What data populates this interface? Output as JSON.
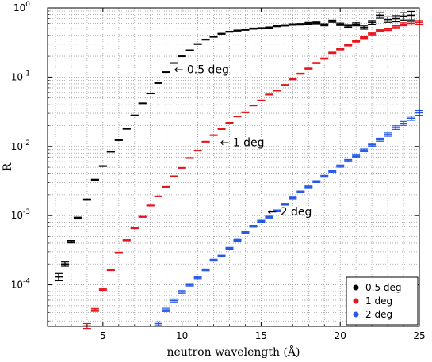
{
  "chart_data": {
    "type": "scatter",
    "xlabel": "neutron wavelength (Å)",
    "ylabel": "R",
    "xlim": [
      1.5,
      25
    ],
    "ylim_log10": [
      -4.6,
      0
    ],
    "yscale": "log",
    "grid": true,
    "legend_position": "bottom-right",
    "x_ticks": [
      5,
      10,
      15,
      20,
      25
    ],
    "y_ticks": [
      {
        "exp": "0",
        "value": 1
      },
      {
        "exp": "-1",
        "value": 0.1
      },
      {
        "exp": "-2",
        "value": 0.01
      },
      {
        "exp": "-3",
        "value": 0.001
      },
      {
        "exp": "-4",
        "value": 0.0001
      }
    ],
    "y_tick_base": "10",
    "series": [
      {
        "name": "0.5 deg",
        "color": "#000000",
        "points": [
          [
            2.2,
            0.00013,
            0.12
          ],
          [
            2.6,
            0.0002,
            0.07
          ],
          [
            3.0,
            0.00042,
            0.04
          ],
          [
            3.4,
            0.00092,
            0.03
          ],
          [
            4.0,
            0.0017,
            0.02
          ],
          [
            4.5,
            0.0033,
            0.015
          ],
          [
            5.0,
            0.0052,
            0.012
          ],
          [
            5.5,
            0.0084,
            0.01
          ],
          [
            6.0,
            0.0123,
            0.01
          ],
          [
            6.5,
            0.0179,
            0.01
          ],
          [
            7.0,
            0.028,
            0.01
          ],
          [
            7.5,
            0.042,
            0.01
          ],
          [
            8.0,
            0.058,
            0.01
          ],
          [
            8.5,
            0.082,
            0.01
          ],
          [
            9.0,
            0.118,
            0.01
          ],
          [
            9.5,
            0.16,
            0.01
          ],
          [
            10.0,
            0.2,
            0.01
          ],
          [
            10.5,
            0.244,
            0.012
          ],
          [
            11.0,
            0.3,
            0.012
          ],
          [
            11.5,
            0.347,
            0.013
          ],
          [
            12.0,
            0.382,
            0.014
          ],
          [
            12.5,
            0.422,
            0.015
          ],
          [
            13.0,
            0.452,
            0.015
          ],
          [
            13.5,
            0.47,
            0.016
          ],
          [
            14.0,
            0.483,
            0.017
          ],
          [
            14.5,
            0.502,
            0.018
          ],
          [
            15.0,
            0.508,
            0.019
          ],
          [
            15.5,
            0.52,
            0.02
          ],
          [
            16.0,
            0.547,
            0.021
          ],
          [
            16.5,
            0.56,
            0.022
          ],
          [
            17.0,
            0.575,
            0.023
          ],
          [
            17.5,
            0.58,
            0.025
          ],
          [
            18.0,
            0.6,
            0.027
          ],
          [
            18.5,
            0.608,
            0.03
          ],
          [
            19.0,
            0.57,
            0.033
          ],
          [
            19.5,
            0.643,
            0.037
          ],
          [
            20.0,
            0.58,
            0.04
          ],
          [
            20.5,
            0.55,
            0.045
          ],
          [
            21.0,
            0.58,
            0.05
          ],
          [
            21.5,
            0.52,
            0.055
          ],
          [
            22.0,
            0.62,
            0.06
          ],
          [
            22.5,
            0.78,
            0.09
          ],
          [
            23.0,
            0.68,
            0.09
          ],
          [
            23.5,
            0.7,
            0.1
          ],
          [
            24.0,
            0.76,
            0.12
          ],
          [
            24.5,
            0.78,
            0.14
          ]
        ]
      },
      {
        "name": "1 deg",
        "color": "#e8141b",
        "points": [
          [
            4.0,
            2.55e-05,
            0.08
          ],
          [
            4.5,
            4.35e-05,
            0.05
          ],
          [
            5.0,
            8.65e-05,
            0.035
          ],
          [
            5.5,
            0.000165,
            0.025
          ],
          [
            6.0,
            0.00029,
            0.02
          ],
          [
            6.5,
            0.00044,
            0.018
          ],
          [
            7.0,
            0.00066,
            0.016
          ],
          [
            7.5,
            0.00096,
            0.015
          ],
          [
            8.0,
            0.0014,
            0.014
          ],
          [
            8.5,
            0.0019,
            0.013
          ],
          [
            9.0,
            0.0026,
            0.012
          ],
          [
            9.5,
            0.0037,
            0.012
          ],
          [
            10.0,
            0.0049,
            0.012
          ],
          [
            10.5,
            0.0068,
            0.012
          ],
          [
            11.0,
            0.0087,
            0.012
          ],
          [
            11.5,
            0.0117,
            0.012
          ],
          [
            12.0,
            0.0145,
            0.012
          ],
          [
            12.5,
            0.0178,
            0.012
          ],
          [
            13.0,
            0.0219,
            0.013
          ],
          [
            13.5,
            0.027,
            0.013
          ],
          [
            14.0,
            0.031,
            0.013
          ],
          [
            14.5,
            0.039,
            0.013
          ],
          [
            15.0,
            0.046,
            0.014
          ],
          [
            15.5,
            0.056,
            0.014
          ],
          [
            16.0,
            0.064,
            0.015
          ],
          [
            16.5,
            0.077,
            0.015
          ],
          [
            17.0,
            0.093,
            0.016
          ],
          [
            17.5,
            0.112,
            0.017
          ],
          [
            18.0,
            0.133,
            0.018
          ],
          [
            18.5,
            0.16,
            0.019
          ],
          [
            19.0,
            0.185,
            0.02
          ],
          [
            19.5,
            0.224,
            0.022
          ],
          [
            20.0,
            0.253,
            0.024
          ],
          [
            20.5,
            0.29,
            0.026
          ],
          [
            21.0,
            0.33,
            0.028
          ],
          [
            21.5,
            0.37,
            0.03
          ],
          [
            22.0,
            0.42,
            0.033
          ],
          [
            22.5,
            0.47,
            0.036
          ],
          [
            23.0,
            0.49,
            0.04
          ],
          [
            23.5,
            0.53,
            0.045
          ],
          [
            24.0,
            0.58,
            0.05
          ],
          [
            24.5,
            0.6,
            0.055
          ],
          [
            25.0,
            0.62,
            0.06
          ]
        ]
      },
      {
        "name": "2 deg",
        "color": "#2659e6",
        "points": [
          [
            8.5,
            2.75e-05,
            0.06
          ],
          [
            9.0,
            4.35e-05,
            0.055
          ],
          [
            9.5,
            5.95e-05,
            0.05
          ],
          [
            10.0,
            7.9e-05,
            0.045
          ],
          [
            10.5,
            0.0001,
            0.04
          ],
          [
            11.0,
            0.000127,
            0.035
          ],
          [
            11.5,
            0.000165,
            0.03
          ],
          [
            12.0,
            0.000227,
            0.03
          ],
          [
            12.5,
            0.00026,
            0.03
          ],
          [
            13.0,
            0.000337,
            0.03
          ],
          [
            13.5,
            0.00044,
            0.03
          ],
          [
            14.0,
            0.00057,
            0.03
          ],
          [
            14.5,
            0.0007,
            0.03
          ],
          [
            15.0,
            0.00083,
            0.03
          ],
          [
            15.5,
            0.00095,
            0.03
          ],
          [
            16.0,
            0.00117,
            0.03
          ],
          [
            16.5,
            0.00146,
            0.03
          ],
          [
            17.0,
            0.0018,
            0.03
          ],
          [
            17.5,
            0.0022,
            0.03
          ],
          [
            18.0,
            0.0026,
            0.03
          ],
          [
            18.5,
            0.0031,
            0.03
          ],
          [
            19.0,
            0.0037,
            0.03
          ],
          [
            19.5,
            0.0043,
            0.035
          ],
          [
            20.0,
            0.0052,
            0.035
          ],
          [
            20.5,
            0.0062,
            0.04
          ],
          [
            21.0,
            0.0072,
            0.04
          ],
          [
            21.5,
            0.0088,
            0.045
          ],
          [
            22.0,
            0.0106,
            0.045
          ],
          [
            22.5,
            0.0125,
            0.05
          ],
          [
            23.0,
            0.0148,
            0.055
          ],
          [
            23.5,
            0.0187,
            0.06
          ],
          [
            24.0,
            0.0215,
            0.065
          ],
          [
            24.5,
            0.0255,
            0.07
          ],
          [
            25.0,
            0.0305,
            0.08
          ]
        ]
      }
    ],
    "annotations": [
      {
        "text": "← 0.5 deg",
        "x": 9.5,
        "y": 0.13
      },
      {
        "text": "← 1 deg",
        "x": 12.4,
        "y": 0.0115
      },
      {
        "text": "← 2 deg",
        "x": 15.4,
        "y": 0.00115
      }
    ]
  }
}
